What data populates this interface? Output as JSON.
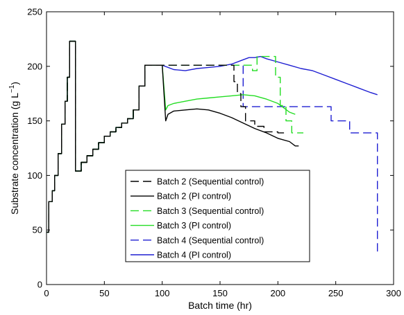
{
  "chart_data": {
    "type": "line",
    "xlabel": "Batch time (hr)",
    "ylabel": "Substrate concentration (g L",
    "ylabel_unit_sup": "−1",
    "ylabel_close": ")",
    "xlim": [
      0,
      300
    ],
    "ylim": [
      0,
      250
    ],
    "x_ticks": [
      0,
      50,
      100,
      150,
      200,
      250,
      300
    ],
    "y_ticks": [
      0,
      50,
      100,
      150,
      200,
      250
    ],
    "grid": false,
    "legend_position": "center-bottom",
    "series": [
      {
        "name": "Batch 2 (Sequential control)",
        "color": "#000000",
        "dash": "dashed",
        "x": [
          0,
          2,
          2,
          5,
          5,
          7,
          7,
          10,
          10,
          13,
          13,
          16,
          16,
          18,
          18,
          20,
          20,
          22,
          22,
          25,
          25,
          30,
          30,
          35,
          35,
          40,
          40,
          45,
          45,
          50,
          50,
          55,
          55,
          60,
          60,
          65,
          65,
          70,
          70,
          75,
          75,
          80,
          80,
          85,
          85,
          88,
          88,
          100,
          162,
          162,
          165,
          165,
          168,
          168,
          172,
          172,
          180,
          180,
          188,
          188,
          200,
          200,
          208
        ],
        "y": [
          48,
          48,
          76,
          76,
          86,
          86,
          100,
          100,
          120,
          120,
          147,
          147,
          168,
          168,
          190,
          190,
          223,
          223,
          223,
          223,
          104,
          104,
          112,
          112,
          118,
          118,
          124,
          124,
          130,
          130,
          136,
          136,
          140,
          140,
          144,
          144,
          148,
          148,
          152,
          152,
          160,
          160,
          182,
          182,
          201,
          201,
          201,
          201,
          201,
          186,
          186,
          175,
          175,
          163,
          163,
          150,
          150,
          145,
          145,
          140,
          140,
          139,
          139
        ]
      },
      {
        "name": "Batch 2 (PI control)",
        "color": "#000000",
        "dash": "solid",
        "x": [
          0,
          2,
          2,
          5,
          5,
          7,
          7,
          10,
          10,
          13,
          13,
          16,
          16,
          18,
          18,
          20,
          20,
          22,
          22,
          25,
          25,
          30,
          30,
          35,
          35,
          40,
          40,
          45,
          45,
          50,
          50,
          55,
          55,
          60,
          60,
          65,
          65,
          70,
          70,
          75,
          75,
          80,
          80,
          85,
          85,
          88,
          88,
          100,
          103,
          105,
          110,
          120,
          130,
          140,
          150,
          160,
          170,
          180,
          190,
          200,
          210,
          215,
          218
        ],
        "y": [
          48,
          48,
          76,
          76,
          86,
          86,
          100,
          100,
          120,
          120,
          147,
          147,
          168,
          168,
          190,
          190,
          223,
          223,
          223,
          223,
          104,
          104,
          112,
          112,
          118,
          118,
          124,
          124,
          130,
          130,
          136,
          136,
          140,
          140,
          144,
          144,
          148,
          148,
          152,
          152,
          160,
          160,
          182,
          182,
          201,
          201,
          201,
          201,
          150,
          156,
          159,
          160,
          161,
          160,
          157,
          153,
          148,
          143,
          139,
          134,
          131,
          127,
          127
        ]
      },
      {
        "name": "Batch 3 (Sequential control)",
        "color": "#22dd22",
        "dash": "dashed",
        "x": [
          0,
          2,
          2,
          5,
          5,
          7,
          7,
          10,
          10,
          13,
          13,
          16,
          16,
          18,
          18,
          20,
          20,
          22,
          22,
          25,
          25,
          30,
          30,
          35,
          35,
          40,
          40,
          45,
          45,
          50,
          50,
          55,
          55,
          60,
          60,
          65,
          65,
          70,
          70,
          75,
          75,
          80,
          80,
          85,
          85,
          88,
          88,
          100,
          178,
          178,
          182,
          182,
          185,
          185,
          198,
          198,
          202,
          202,
          207,
          207,
          212,
          212,
          222
        ],
        "y": [
          48,
          48,
          76,
          76,
          86,
          86,
          100,
          100,
          120,
          120,
          147,
          147,
          168,
          168,
          190,
          190,
          223,
          223,
          223,
          223,
          104,
          104,
          112,
          112,
          118,
          118,
          124,
          124,
          130,
          130,
          136,
          136,
          140,
          140,
          144,
          144,
          148,
          148,
          152,
          152,
          160,
          160,
          182,
          182,
          201,
          201,
          201,
          201,
          201,
          196,
          196,
          209,
          209,
          209,
          209,
          190,
          190,
          164,
          164,
          150,
          150,
          139,
          139
        ]
      },
      {
        "name": "Batch 3 (PI control)",
        "color": "#22dd22",
        "dash": "solid",
        "x": [
          0,
          2,
          2,
          5,
          5,
          7,
          7,
          10,
          10,
          13,
          13,
          16,
          16,
          18,
          18,
          20,
          20,
          22,
          22,
          25,
          25,
          30,
          30,
          35,
          35,
          40,
          40,
          45,
          45,
          50,
          50,
          55,
          55,
          60,
          60,
          65,
          65,
          70,
          70,
          75,
          75,
          80,
          80,
          85,
          85,
          88,
          88,
          100,
          103,
          105,
          110,
          120,
          130,
          140,
          150,
          160,
          170,
          180,
          190,
          200,
          205,
          210,
          215
        ],
        "y": [
          48,
          48,
          76,
          76,
          86,
          86,
          100,
          100,
          120,
          120,
          147,
          147,
          168,
          168,
          190,
          190,
          223,
          223,
          223,
          223,
          104,
          104,
          112,
          112,
          118,
          118,
          124,
          124,
          130,
          130,
          136,
          136,
          140,
          140,
          144,
          144,
          148,
          148,
          152,
          152,
          160,
          160,
          182,
          182,
          201,
          201,
          201,
          201,
          160,
          164,
          166,
          168,
          170,
          171,
          172,
          173,
          174,
          173,
          170,
          166,
          162,
          158,
          156
        ]
      },
      {
        "name": "Batch 4 (Sequential control)",
        "color": "#1e1ed2",
        "dash": "dashed",
        "x": [
          0,
          2,
          2,
          5,
          5,
          7,
          7,
          10,
          10,
          13,
          13,
          16,
          16,
          18,
          18,
          20,
          20,
          22,
          22,
          25,
          25,
          30,
          30,
          35,
          35,
          40,
          40,
          45,
          45,
          50,
          50,
          55,
          55,
          60,
          60,
          65,
          65,
          70,
          70,
          75,
          75,
          80,
          80,
          85,
          85,
          88,
          88,
          100,
          170,
          170,
          205,
          205,
          246,
          246,
          262,
          262,
          286,
          286
        ],
        "y": [
          48,
          48,
          76,
          76,
          86,
          86,
          100,
          100,
          120,
          120,
          147,
          147,
          168,
          168,
          190,
          190,
          223,
          223,
          223,
          223,
          104,
          104,
          112,
          112,
          118,
          118,
          124,
          124,
          130,
          130,
          136,
          136,
          140,
          140,
          144,
          144,
          148,
          148,
          152,
          152,
          160,
          160,
          182,
          182,
          201,
          201,
          201,
          201,
          201,
          163,
          163,
          163,
          163,
          150,
          150,
          139,
          139,
          27
        ]
      },
      {
        "name": "Batch 4 (PI control)",
        "color": "#1e1ed2",
        "dash": "solid",
        "x": [
          0,
          2,
          2,
          5,
          5,
          7,
          7,
          10,
          10,
          13,
          13,
          16,
          16,
          18,
          18,
          20,
          20,
          22,
          22,
          25,
          25,
          30,
          30,
          35,
          35,
          40,
          40,
          45,
          45,
          50,
          50,
          55,
          55,
          60,
          60,
          65,
          65,
          70,
          70,
          75,
          75,
          80,
          80,
          85,
          85,
          88,
          88,
          100,
          110,
          120,
          130,
          140,
          150,
          160,
          170,
          175,
          180,
          185,
          190,
          200,
          210,
          220,
          230,
          240,
          250,
          260,
          270,
          280,
          286
        ],
        "y": [
          48,
          48,
          76,
          76,
          86,
          86,
          100,
          100,
          120,
          120,
          147,
          147,
          168,
          168,
          190,
          190,
          223,
          223,
          223,
          223,
          104,
          104,
          112,
          112,
          118,
          118,
          124,
          124,
          130,
          130,
          136,
          136,
          140,
          140,
          144,
          144,
          148,
          148,
          152,
          152,
          160,
          160,
          182,
          182,
          201,
          201,
          201,
          201,
          197,
          196,
          198,
          199,
          200,
          202,
          206,
          208,
          208,
          209,
          207,
          204,
          201,
          198,
          196,
          192,
          188,
          184,
          180,
          176,
          174
        ]
      }
    ]
  }
}
